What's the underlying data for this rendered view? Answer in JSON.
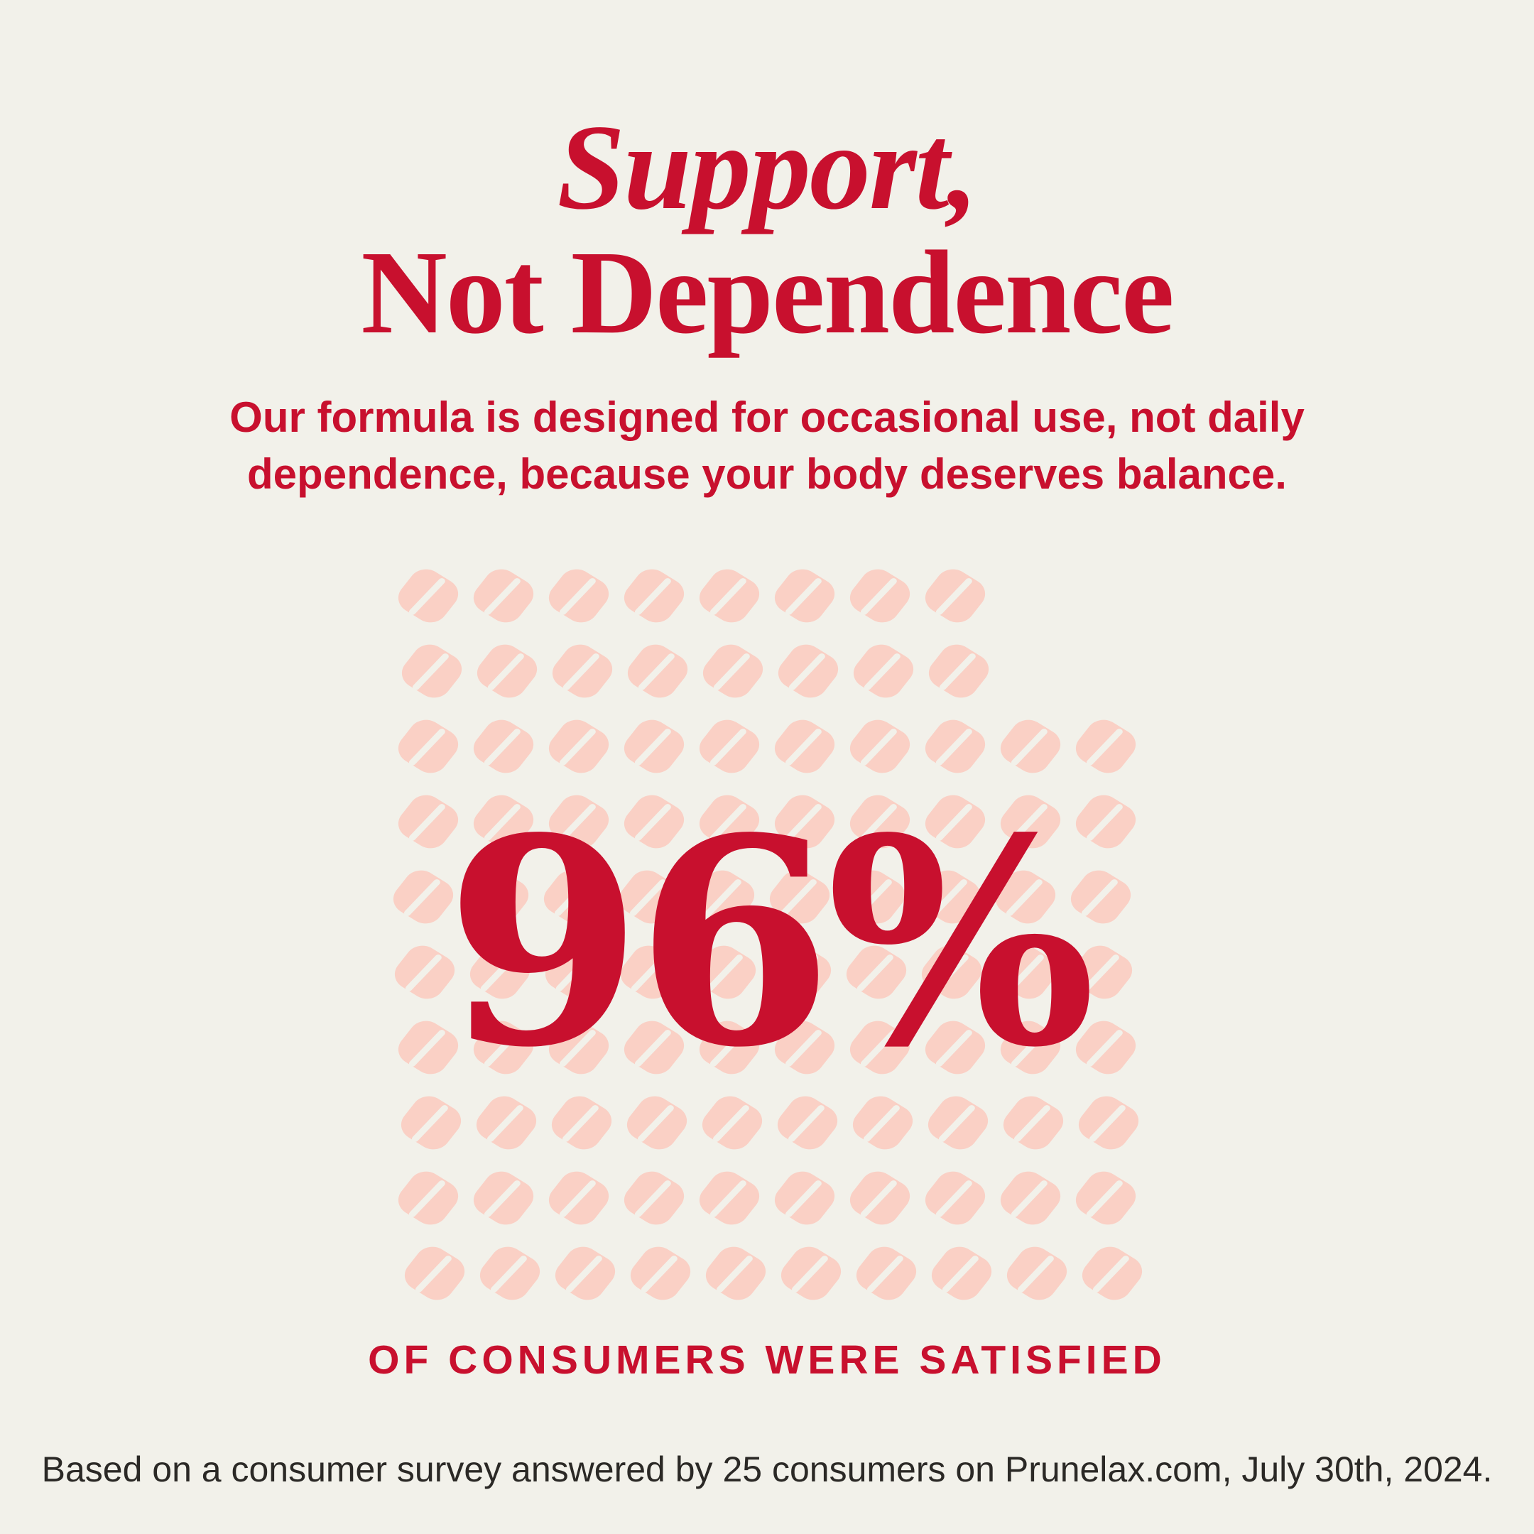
{
  "page": {
    "background_color": "#F2F1EA",
    "accent_color": "#C8102E",
    "text_dark_color": "#2B2926"
  },
  "header": {
    "title_line1": "Support,",
    "title_line2": "Not Dependence"
  },
  "subtitle": {
    "line1": "Our formula is designed for occasional use, not daily",
    "line2": "dependence, because your body deserves balance."
  },
  "stat": {
    "value": "96%",
    "caption": "OF CONSUMERS WERE SATISFIED"
  },
  "footer": {
    "disclaimer": "Based on a consumer survey answered by 25 consumers on Prunelax.com, July 30th, 2024."
  },
  "chart_data": {
    "type": "pictogram",
    "title": "96% of consumers were satisfied",
    "value_percent": 96,
    "icon": "pill-tablet-icon",
    "total_positions": 100,
    "filled_icons": 96,
    "rows": [
      8,
      8,
      10,
      10,
      10,
      10,
      10,
      10,
      10,
      10
    ],
    "layout_note": "10-column grid of pill icons; 4 icons omitted at the top right (rows 1-2 show 8 of 10), so 96 pills represent 96%",
    "icon_color": "#FAD0C5",
    "icon_score_line_color": "#F2F1EA",
    "legend_position": "none",
    "annotations": [
      "96%",
      "OF CONSUMERS WERE SATISFIED"
    ]
  }
}
